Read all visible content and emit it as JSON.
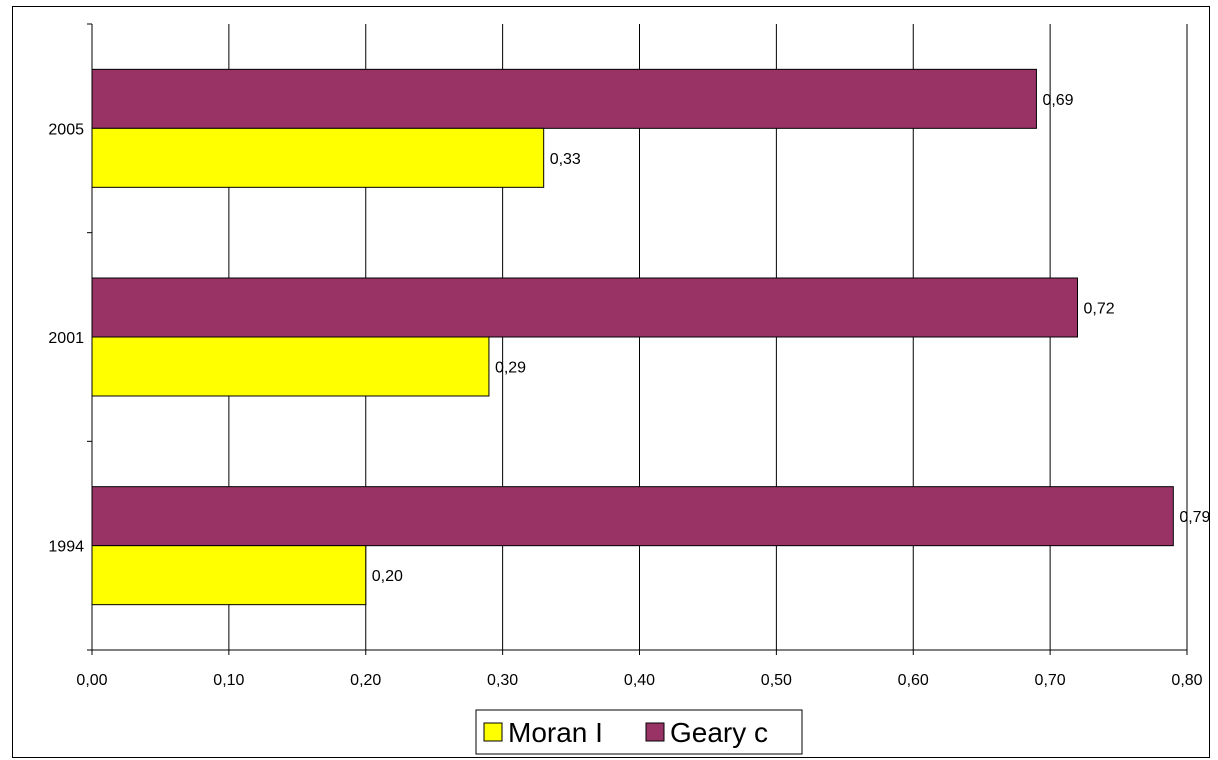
{
  "chart_data": {
    "type": "bar",
    "orientation": "horizontal",
    "categories": [
      "1994",
      "2001",
      "2005"
    ],
    "series": [
      {
        "name": "Moran I",
        "values": [
          0.2,
          0.29,
          0.33
        ],
        "color": "#FFFF00",
        "value_labels": [
          "0,20",
          "0,29",
          "0,33"
        ]
      },
      {
        "name": "Geary c",
        "values": [
          0.79,
          0.72,
          0.69
        ],
        "color": "#993366",
        "value_labels": [
          "0,79",
          "0,72",
          "0,69"
        ]
      }
    ],
    "xlim": [
      0,
      0.8
    ],
    "xticks": [
      0,
      0.1,
      0.2,
      0.3,
      0.4,
      0.5,
      0.6,
      0.7,
      0.8
    ],
    "xtick_labels": [
      "0,00",
      "0,10",
      "0,20",
      "0,30",
      "0,40",
      "0,50",
      "0,60",
      "0,70",
      "0,80"
    ],
    "grid": "vertical",
    "legend_position": "bottom",
    "title": "",
    "xlabel": "",
    "ylabel": ""
  }
}
